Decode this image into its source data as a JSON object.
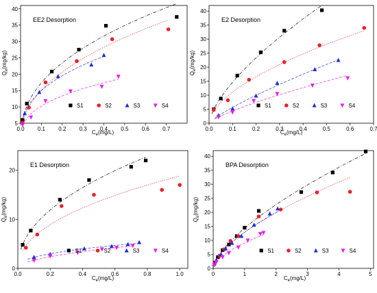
{
  "chart_data": [
    {
      "type": "scatter",
      "title": "EE2 Desorption",
      "xlabel": "C_e(mg/L)",
      "ylabel": "Q_e(mg/kg)",
      "xlim": [
        0,
        0.8
      ],
      "ylim": [
        5,
        41
      ],
      "xticks": [
        "0.0",
        "0.1",
        "0.2",
        "0.3",
        "0.4",
        "0.5",
        "0.6",
        "0.7"
      ],
      "xtick_values": [
        0,
        0.1,
        0.2,
        0.3,
        0.4,
        0.5,
        0.6,
        0.7
      ],
      "yticks": [
        "5",
        "10",
        "15",
        "20",
        "25",
        "30",
        "35",
        "40"
      ],
      "ytick_values": [
        5,
        10,
        15,
        20,
        25,
        30,
        35,
        40
      ],
      "legend_position": "bottom-right",
      "series": [
        {
          "name": "S1",
          "color": "#000000",
          "marker": "square",
          "fit_curve": "dash-dot",
          "x": [
            0.01,
            0.03,
            0.15,
            0.28,
            0.41,
            0.75
          ],
          "y": [
            6,
            11,
            20.8,
            27.5,
            34.8,
            37.5
          ]
        },
        {
          "name": "S2",
          "color": "#e8212b",
          "marker": "circle",
          "fit_curve": "dotted",
          "x": [
            0.01,
            0.04,
            0.12,
            0.27,
            0.44,
            0.71
          ],
          "y": [
            5.2,
            9.8,
            17.5,
            24,
            30.7,
            33.7
          ]
        },
        {
          "name": "S3",
          "color": "#1d2fd8",
          "marker": "triangle-up",
          "fit_curve": "dash",
          "x": [
            0.02,
            0.09,
            0.18,
            0.34,
            0.4
          ],
          "y": [
            8,
            14.5,
            19.3,
            22.9,
            25.8
          ]
        },
        {
          "name": "S4",
          "color": "#e61fe6",
          "marker": "triangle-down",
          "fit_curve": "dash",
          "x": [
            0.01,
            0.05,
            0.12,
            0.24,
            0.39,
            0.47
          ],
          "y": [
            4.5,
            6.8,
            11.8,
            14.8,
            16.2,
            19.3
          ]
        }
      ]
    },
    {
      "type": "scatter",
      "title": "E2 Desorption",
      "xlabel": "C_e(mg/L)",
      "ylabel": "Q_e(mg/kg)",
      "xlim": [
        0,
        0.7
      ],
      "ylim": [
        0,
        42
      ],
      "xticks": [
        "0.0",
        "0.1",
        "0.2",
        "0.3",
        "0.4",
        "0.5",
        "0.6",
        "0.7"
      ],
      "xtick_values": [
        0,
        0.1,
        0.2,
        0.3,
        0.4,
        0.5,
        0.6,
        0.7
      ],
      "yticks": [
        "0",
        "5",
        "10",
        "15",
        "20",
        "25",
        "30",
        "35",
        "40"
      ],
      "ytick_values": [
        0,
        5,
        10,
        15,
        20,
        25,
        30,
        35,
        40
      ],
      "legend_position": "bottom-right",
      "series": [
        {
          "name": "S1",
          "color": "#000000",
          "marker": "square",
          "fit_curve": "dash-dot",
          "x": [
            0.02,
            0.05,
            0.12,
            0.22,
            0.32,
            0.48
          ],
          "y": [
            5,
            8.8,
            17,
            25.3,
            33,
            40.3
          ]
        },
        {
          "name": "S2",
          "color": "#e8212b",
          "marker": "circle",
          "fit_curve": "dotted",
          "x": [
            0.02,
            0.08,
            0.17,
            0.32,
            0.47,
            0.66
          ],
          "y": [
            4.8,
            8.2,
            15.5,
            21.8,
            27.8,
            34
          ]
        },
        {
          "name": "S3",
          "color": "#1d2fd8",
          "marker": "triangle-up",
          "fit_curve": "dash",
          "x": [
            0.04,
            0.1,
            0.2,
            0.29,
            0.45,
            0.55
          ],
          "y": [
            2.8,
            5.2,
            9.8,
            14.3,
            19.2,
            22.5
          ]
        },
        {
          "name": "S4",
          "color": "#e61fe6",
          "marker": "triangle-down",
          "fit_curve": "dash",
          "x": [
            0.04,
            0.1,
            0.19,
            0.29,
            0.44,
            0.59
          ],
          "y": [
            2.2,
            3.9,
            8,
            10.5,
            13.5,
            16.1
          ]
        }
      ]
    },
    {
      "type": "scatter",
      "title": "E1 Desorption",
      "xlabel": "C_e(mg/L)",
      "ylabel": "Q_e(mg/kg)",
      "xlim": [
        0,
        1.05
      ],
      "ylim": [
        0,
        24
      ],
      "xticks": [
        "0.0",
        "0.2",
        "0.4",
        "0.6",
        "0.8",
        "1.0"
      ],
      "xtick_values": [
        0,
        0.2,
        0.4,
        0.6,
        0.8,
        1.0
      ],
      "yticks": [
        "0",
        "10",
        "20"
      ],
      "ytick_values": [
        0,
        10,
        20
      ],
      "legend_position": "bottom-right",
      "series": [
        {
          "name": "S1",
          "color": "#000000",
          "marker": "square",
          "fit_curve": "dash-dot",
          "x": [
            0.03,
            0.08,
            0.26,
            0.44,
            0.7,
            0.79
          ],
          "y": [
            4.8,
            7.7,
            14,
            18,
            20.7,
            22
          ]
        },
        {
          "name": "S2",
          "color": "#e8212b",
          "marker": "circle",
          "fit_curve": "dotted",
          "x": [
            0.05,
            0.12,
            0.27,
            0.47,
            0.89,
            1.0
          ],
          "y": [
            4.2,
            6.9,
            12.7,
            15,
            16,
            17
          ]
        },
        {
          "name": "S3",
          "color": "#1d2fd8",
          "marker": "triangle-up",
          "fit_curve": "dash",
          "x": [
            0.1,
            0.2,
            0.41,
            0.58,
            0.68,
            0.75
          ],
          "y": [
            2.3,
            2.9,
            4,
            4.5,
            4.9,
            5.3
          ]
        },
        {
          "name": "S4",
          "color": "#e61fe6",
          "marker": "triangle-down",
          "fit_curve": "dash",
          "x": [
            0.1,
            0.2,
            0.37,
            0.52,
            0.61,
            0.71
          ],
          "y": [
            1.6,
            2.5,
            3.2,
            3.9,
            4.2,
            4.6
          ]
        }
      ]
    },
    {
      "type": "scatter",
      "title": "BPA Desorption",
      "xlabel": "C_e(mg/L)",
      "ylabel": "Q_e(mg/kg)",
      "xlim": [
        0,
        5.1
      ],
      "ylim": [
        0,
        42
      ],
      "xticks": [
        "0",
        "1",
        "2",
        "3",
        "4",
        "5"
      ],
      "xtick_values": [
        0,
        1,
        2,
        3,
        4,
        5
      ],
      "yticks": [
        "0",
        "5",
        "10",
        "15",
        "20",
        "25",
        "30",
        "35",
        "40"
      ],
      "ytick_values": [
        0,
        5,
        10,
        15,
        20,
        25,
        30,
        35,
        40
      ],
      "legend_position": "bottom-right",
      "series": [
        {
          "name": "S1",
          "color": "#000000",
          "marker": "square",
          "fit_curve": "dash-dot",
          "x": [
            0.05,
            0.15,
            0.3,
            0.5,
            0.75,
            1.0,
            1.45,
            2.8,
            3.8,
            4.85
          ],
          "y": [
            2,
            4,
            6.5,
            8.5,
            11.5,
            14.5,
            20.5,
            27.2,
            34.2,
            41.7
          ]
        },
        {
          "name": "S2",
          "color": "#e8212b",
          "marker": "circle",
          "fit_curve": "dotted",
          "x": [
            0.05,
            0.2,
            0.35,
            0.55,
            0.8,
            1.45,
            2.15,
            3.3,
            4.35
          ],
          "y": [
            1.8,
            4.5,
            6.8,
            9.8,
            11.5,
            18.5,
            21,
            27.1,
            27.3
          ]
        },
        {
          "name": "S3",
          "color": "#1d2fd8",
          "marker": "triangle-up",
          "fit_curve": "dash",
          "x": [
            0.03,
            0.1,
            0.25,
            0.4,
            0.6,
            0.9,
            1.3,
            1.8,
            2.05
          ],
          "y": [
            1.5,
            3,
            5,
            7,
            9,
            11.5,
            15.5,
            19.5,
            21.3
          ]
        },
        {
          "name": "S4",
          "color": "#e61fe6",
          "marker": "triangle-down",
          "fit_curve": "dash",
          "x": [
            0.03,
            0.1,
            0.3,
            0.5,
            0.8,
            1.1,
            1.5,
            1.6
          ],
          "y": [
            1.2,
            2.3,
            4,
            5.5,
            7.5,
            10,
            12.3,
            12.7
          ]
        }
      ]
    }
  ]
}
